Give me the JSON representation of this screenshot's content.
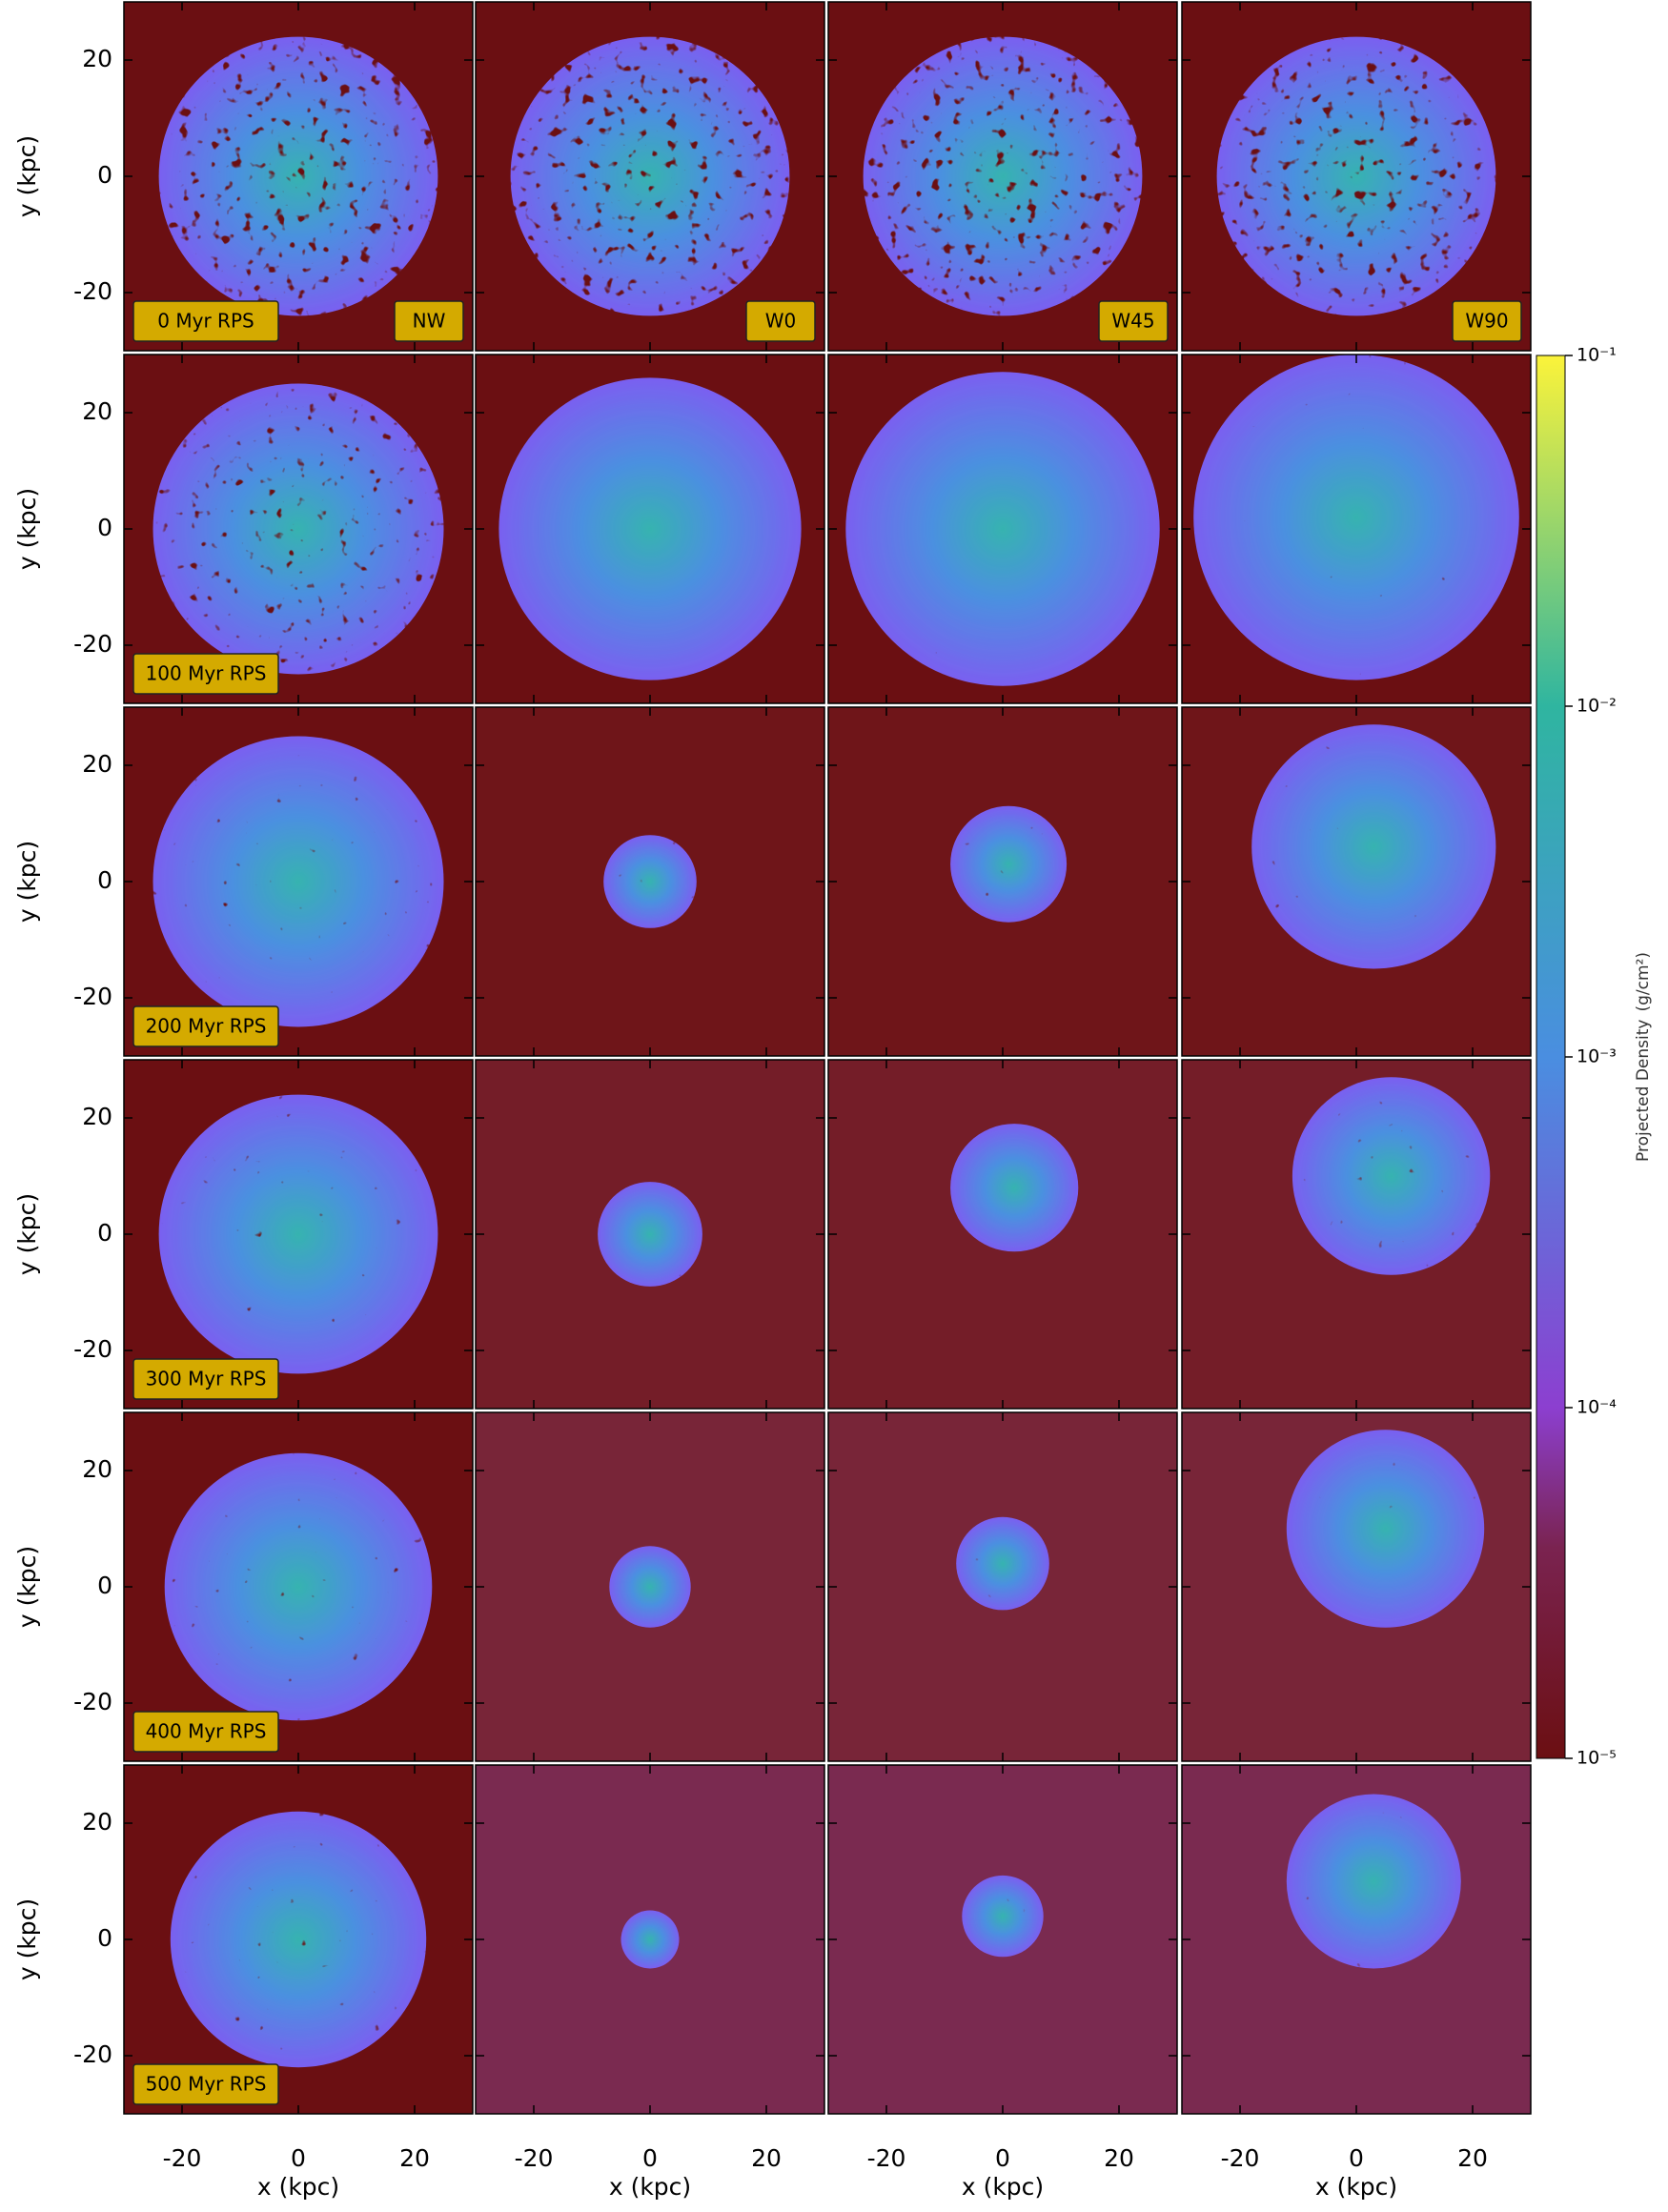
{
  "axes": {
    "xlabel": "x  (kpc)",
    "ylabel": "y  (kpc)",
    "xlim": [
      -30,
      30
    ],
    "ylim": [
      -30,
      30
    ],
    "xticks": [
      -20,
      0,
      20
    ],
    "yticks": [
      -20,
      0,
      20
    ]
  },
  "row_labels": [
    "0 Myr RPS",
    "100 Myr RPS",
    "200 Myr RPS",
    "300 Myr RPS",
    "400 Myr RPS",
    "500 Myr RPS"
  ],
  "column_labels": [
    "NW",
    "W0",
    "W45",
    "W90"
  ],
  "colorbar": {
    "label": "Projected Density",
    "unit": "(g/cm²)",
    "log": true,
    "lim": [
      1e-05,
      0.1
    ],
    "ticks": [
      {
        "value": 1e-05,
        "label": "10⁻⁵"
      },
      {
        "value": 0.0001,
        "label": "10⁻⁴"
      },
      {
        "value": 0.001,
        "label": "10⁻³"
      },
      {
        "value": 0.01,
        "label": "10⁻²"
      },
      {
        "value": 0.1,
        "label": "10⁻¹"
      }
    ]
  }
}
